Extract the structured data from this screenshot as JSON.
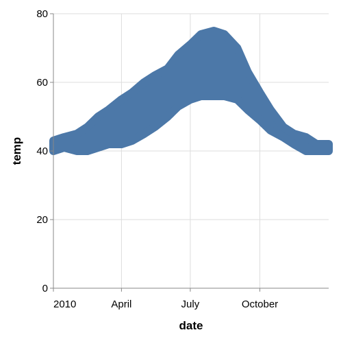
{
  "chart_data": {
    "type": "area",
    "xlabel": "date",
    "ylabel": "temp",
    "ylim": [
      0,
      80
    ],
    "xlim": [
      "2010-01-01",
      "2010-12-31"
    ],
    "x_ticks": [
      {
        "label": "2010",
        "date": "2010-01-01"
      },
      {
        "label": "April",
        "date": "2010-04-01"
      },
      {
        "label": "July",
        "date": "2010-07-01"
      },
      {
        "label": "October",
        "date": "2010-10-01"
      }
    ],
    "y_ticks": [
      0,
      20,
      40,
      60,
      80
    ],
    "grid": true,
    "mark_color": "#4c78a8",
    "series": [
      {
        "x": [
          "2010-01-01",
          "2010-01-15",
          "2010-02-01",
          "2010-02-15",
          "2010-03-01",
          "2010-03-15",
          "2010-04-01",
          "2010-04-15",
          "2010-05-01",
          "2010-05-15",
          "2010-06-01",
          "2010-06-15",
          "2010-07-01",
          "2010-07-15",
          "2010-08-01",
          "2010-08-15",
          "2010-09-01",
          "2010-09-15",
          "2010-10-01",
          "2010-10-15",
          "2010-11-01",
          "2010-11-15",
          "2010-12-01",
          "2010-12-15",
          "2010-12-31"
        ],
        "high": [
          43,
          44,
          45,
          47,
          50,
          52,
          55,
          57,
          60,
          62,
          64,
          68,
          71,
          74,
          75,
          74,
          70,
          63,
          57,
          52,
          47,
          45,
          44,
          42,
          42
        ],
        "low": [
          40,
          41,
          40,
          40,
          41,
          42,
          42,
          43,
          45,
          47,
          50,
          53,
          55,
          56,
          56,
          56,
          55,
          52,
          49,
          46,
          44,
          42,
          40,
          40,
          40
        ]
      }
    ]
  }
}
